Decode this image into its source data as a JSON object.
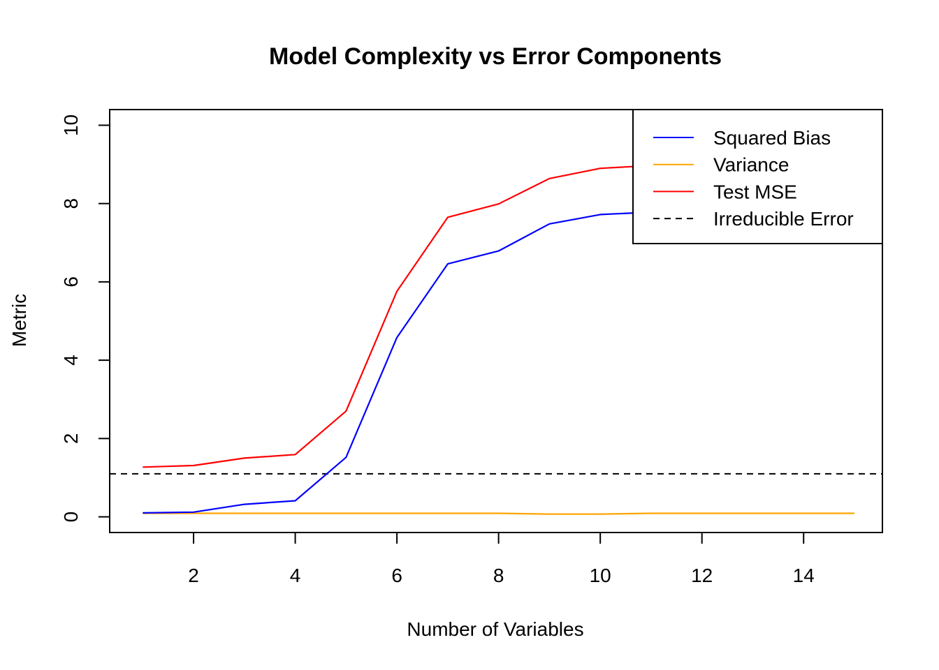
{
  "chart_data": {
    "type": "line",
    "title": "Model Complexity vs Error Components",
    "xlabel": "Number of Variables",
    "ylabel": "Metric",
    "xlim": [
      0.35,
      15.55
    ],
    "ylim": [
      -0.4,
      10.4
    ],
    "x_ticks": [
      2,
      4,
      6,
      8,
      10,
      12,
      14
    ],
    "y_ticks": [
      0,
      2,
      4,
      6,
      8,
      10
    ],
    "grid": false,
    "legend_position": "top-right",
    "x": [
      1,
      2,
      3,
      4,
      5,
      6,
      7,
      8,
      9,
      10,
      11,
      12,
      13,
      14,
      15
    ],
    "series": [
      {
        "name": "Squared Bias",
        "color": "#0000FF",
        "dash": "solid",
        "values": [
          0.1,
          0.12,
          0.32,
          0.41,
          1.52,
          4.58,
          6.46,
          6.79,
          7.48,
          7.72,
          7.78,
          7.82,
          7.84,
          7.85,
          7.86
        ]
      },
      {
        "name": "Variance",
        "color": "#FFA500",
        "dash": "solid",
        "values": [
          0.09,
          0.09,
          0.09,
          0.09,
          0.09,
          0.09,
          0.09,
          0.09,
          0.07,
          0.07,
          0.09,
          0.09,
          0.09,
          0.09,
          0.09
        ]
      },
      {
        "name": "Test MSE",
        "color": "#FF0000",
        "dash": "solid",
        "values": [
          1.27,
          1.31,
          1.5,
          1.59,
          2.7,
          5.76,
          7.65,
          7.99,
          8.64,
          8.9,
          8.97,
          9.0,
          9.02,
          9.03,
          9.04
        ]
      }
    ],
    "hlines": [
      {
        "name": "Irreducible Error",
        "y": 1.1,
        "color": "#000000",
        "dash": "dashed"
      }
    ]
  }
}
